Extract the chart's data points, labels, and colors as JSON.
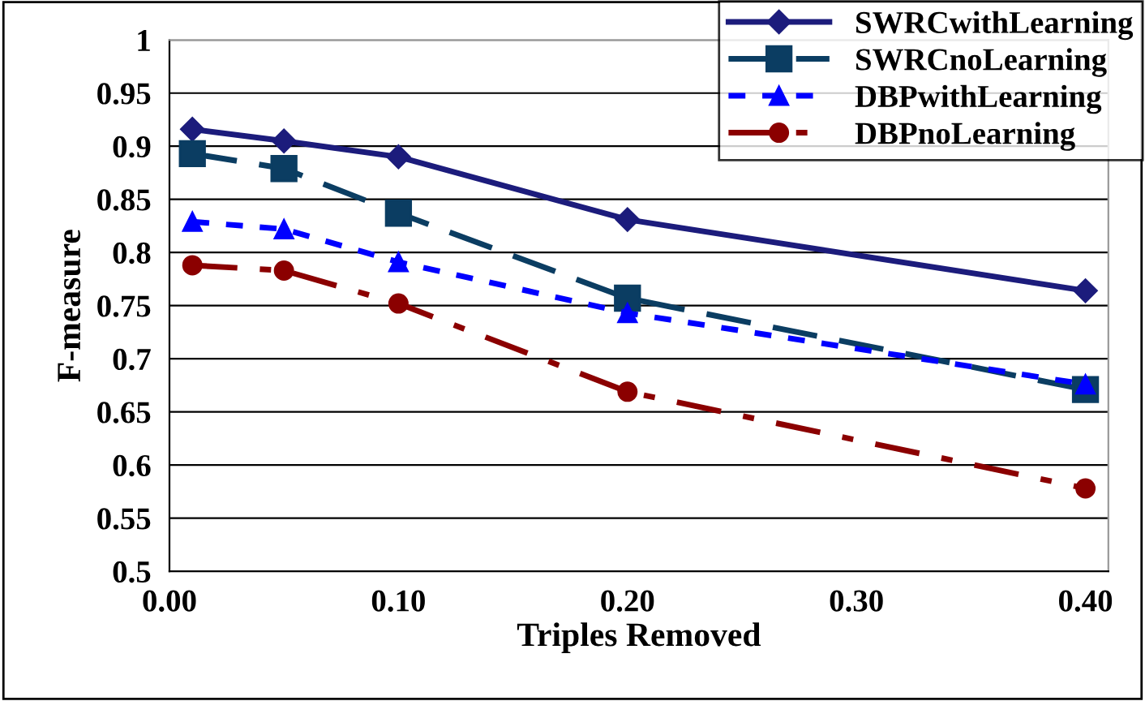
{
  "chart_data": {
    "type": "line",
    "xlabel": "Triples Removed",
    "ylabel": "F-measure",
    "x": [
      0.01,
      0.05,
      0.1,
      0.2,
      0.4
    ],
    "series": [
      {
        "name": "SWRCwithLearning",
        "color": "#1c1c7c",
        "values": [
          0.916,
          0.905,
          0.89,
          0.831,
          0.764
        ],
        "marker": "diamond",
        "line_style": "solid"
      },
      {
        "name": "SWRCnoLearning",
        "color": "#0b3d62",
        "values": [
          0.893,
          0.879,
          0.837,
          0.757,
          0.671
        ],
        "marker": "square",
        "line_style": "dashed"
      },
      {
        "name": "DBPwithLearning",
        "color": "#0000ff",
        "values": [
          0.829,
          0.822,
          0.791,
          0.743,
          0.676
        ],
        "marker": "triangle",
        "line_style": "dotted"
      },
      {
        "name": "DBPnoLearning",
        "color": "#8b0000",
        "values": [
          0.788,
          0.783,
          0.752,
          0.669,
          0.578
        ],
        "marker": "circle",
        "line_style": "dashdot"
      }
    ],
    "xlim": [
      0,
      0.41
    ],
    "xticks": [
      {
        "value": 0,
        "label": "0.00"
      },
      {
        "value": 0.1,
        "label": "0.10"
      },
      {
        "value": 0.2,
        "label": "0.20"
      },
      {
        "value": 0.3,
        "label": "0.30"
      },
      {
        "value": 0.4,
        "label": "0.40"
      }
    ],
    "ylim": [
      0.5,
      1
    ],
    "yticks": [
      0.5,
      0.55,
      0.6,
      0.65,
      0.7,
      0.75,
      0.8,
      0.85,
      0.9,
      0.95,
      1
    ],
    "grid": "y",
    "legend": "top right"
  }
}
